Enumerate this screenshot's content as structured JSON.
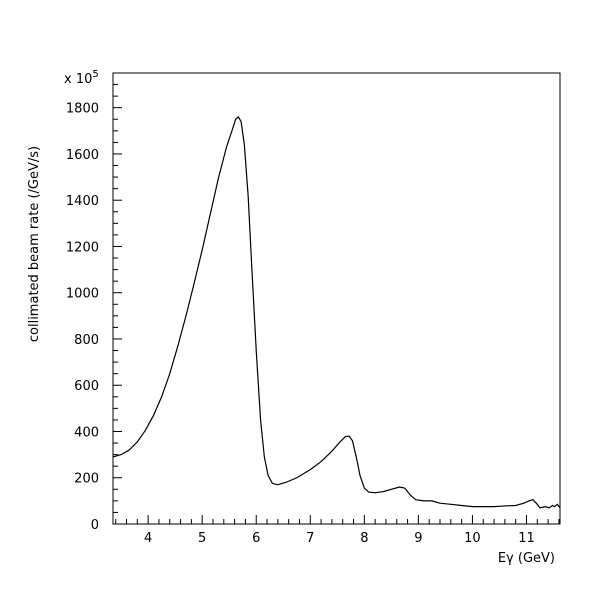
{
  "chart_data": {
    "type": "line",
    "title": "",
    "xlabel": "Eγ (GeV)",
    "ylabel": "collimated beam rate (/GeV/s)",
    "y_multiplier_label": "x 10",
    "y_multiplier_exponent": "5",
    "xlim": [
      3.35,
      11.62
    ],
    "ylim": [
      0,
      1950
    ],
    "grid": false,
    "legend": "none",
    "x_ticks": [
      4,
      5,
      6,
      7,
      8,
      9,
      10,
      11
    ],
    "y_ticks": [
      0,
      200,
      400,
      600,
      800,
      1000,
      1200,
      1400,
      1600,
      1800
    ],
    "series": [
      {
        "color": "#000000",
        "points": [
          [
            3.35,
            290
          ],
          [
            3.5,
            300
          ],
          [
            3.65,
            320
          ],
          [
            3.8,
            355
          ],
          [
            3.95,
            405
          ],
          [
            4.1,
            470
          ],
          [
            4.25,
            550
          ],
          [
            4.4,
            650
          ],
          [
            4.55,
            770
          ],
          [
            4.7,
            900
          ],
          [
            4.85,
            1040
          ],
          [
            5.0,
            1185
          ],
          [
            5.15,
            1340
          ],
          [
            5.3,
            1495
          ],
          [
            5.45,
            1630
          ],
          [
            5.55,
            1700
          ],
          [
            5.62,
            1750
          ],
          [
            5.67,
            1760
          ],
          [
            5.72,
            1740
          ],
          [
            5.78,
            1640
          ],
          [
            5.85,
            1420
          ],
          [
            5.92,
            1100
          ],
          [
            6.0,
            750
          ],
          [
            6.08,
            450
          ],
          [
            6.15,
            290
          ],
          [
            6.22,
            210
          ],
          [
            6.3,
            175
          ],
          [
            6.4,
            170
          ],
          [
            6.55,
            180
          ],
          [
            6.75,
            200
          ],
          [
            7.0,
            235
          ],
          [
            7.2,
            270
          ],
          [
            7.4,
            315
          ],
          [
            7.55,
            355
          ],
          [
            7.65,
            378
          ],
          [
            7.72,
            380
          ],
          [
            7.78,
            360
          ],
          [
            7.85,
            290
          ],
          [
            7.92,
            210
          ],
          [
            8.0,
            155
          ],
          [
            8.08,
            138
          ],
          [
            8.2,
            135
          ],
          [
            8.35,
            140
          ],
          [
            8.5,
            150
          ],
          [
            8.65,
            160
          ],
          [
            8.75,
            155
          ],
          [
            8.85,
            125
          ],
          [
            8.95,
            105
          ],
          [
            9.1,
            100
          ],
          [
            9.25,
            100
          ],
          [
            9.4,
            90
          ],
          [
            9.6,
            85
          ],
          [
            9.8,
            80
          ],
          [
            10.0,
            75
          ],
          [
            10.2,
            75
          ],
          [
            10.4,
            75
          ],
          [
            10.6,
            78
          ],
          [
            10.8,
            80
          ],
          [
            10.95,
            90
          ],
          [
            11.05,
            100
          ],
          [
            11.12,
            105
          ],
          [
            11.18,
            90
          ],
          [
            11.25,
            70
          ],
          [
            11.35,
            75
          ],
          [
            11.42,
            70
          ],
          [
            11.48,
            80
          ],
          [
            11.52,
            75
          ],
          [
            11.57,
            85
          ],
          [
            11.62,
            70
          ]
        ]
      }
    ]
  }
}
